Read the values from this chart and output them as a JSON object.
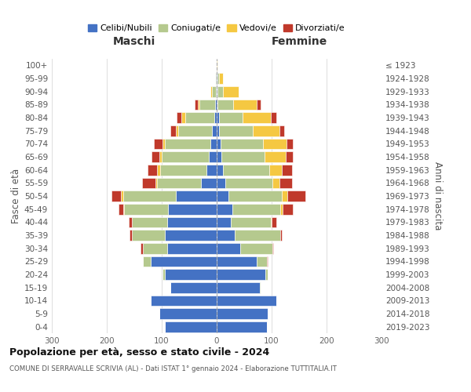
{
  "age_groups": [
    "0-4",
    "5-9",
    "10-14",
    "15-19",
    "20-24",
    "25-29",
    "30-34",
    "35-39",
    "40-44",
    "45-49",
    "50-54",
    "55-59",
    "60-64",
    "65-69",
    "70-74",
    "75-79",
    "80-84",
    "85-89",
    "90-94",
    "95-99",
    "100+"
  ],
  "birth_years": [
    "2019-2023",
    "2014-2018",
    "2009-2013",
    "2004-2008",
    "1999-2003",
    "1994-1998",
    "1989-1993",
    "1984-1988",
    "1979-1983",
    "1974-1978",
    "1969-1973",
    "1964-1968",
    "1959-1963",
    "1954-1958",
    "1949-1953",
    "1944-1948",
    "1939-1943",
    "1934-1938",
    "1929-1933",
    "1924-1928",
    "≤ 1923"
  ],
  "maschi": {
    "celibi": [
      95,
      105,
      120,
      85,
      95,
      120,
      90,
      95,
      90,
      88,
      75,
      28,
      18,
      15,
      12,
      8,
      5,
      3,
      2,
      1,
      0
    ],
    "coniugati": [
      0,
      0,
      0,
      0,
      3,
      15,
      45,
      60,
      65,
      80,
      95,
      80,
      85,
      85,
      82,
      62,
      52,
      28,
      7,
      2,
      0
    ],
    "vedovi": [
      0,
      0,
      0,
      0,
      0,
      0,
      0,
      0,
      0,
      2,
      4,
      4,
      5,
      5,
      5,
      5,
      8,
      4,
      3,
      0,
      0
    ],
    "divorziati": [
      0,
      0,
      0,
      0,
      0,
      0,
      4,
      4,
      5,
      8,
      18,
      24,
      18,
      14,
      15,
      10,
      8,
      5,
      0,
      0,
      0
    ]
  },
  "femmine": {
    "nubili": [
      92,
      93,
      108,
      78,
      88,
      73,
      43,
      33,
      26,
      28,
      22,
      16,
      11,
      9,
      7,
      4,
      4,
      2,
      2,
      1,
      0
    ],
    "coniugate": [
      0,
      0,
      0,
      2,
      5,
      18,
      58,
      82,
      72,
      88,
      97,
      85,
      85,
      78,
      77,
      62,
      43,
      28,
      10,
      3,
      0
    ],
    "vedove": [
      0,
      0,
      0,
      0,
      0,
      0,
      0,
      0,
      2,
      4,
      9,
      13,
      23,
      38,
      43,
      48,
      52,
      43,
      28,
      8,
      1
    ],
    "divorziate": [
      0,
      0,
      0,
      0,
      0,
      2,
      2,
      4,
      9,
      18,
      33,
      23,
      18,
      14,
      11,
      9,
      9,
      7,
      0,
      0,
      0
    ]
  },
  "colors": {
    "celibi": "#4472c4",
    "coniugati": "#b5c98e",
    "vedovi": "#f5c842",
    "divorziati": "#c0392b"
  },
  "legend_labels": [
    "Celibi/Nubili",
    "Coniugati/e",
    "Vedovi/e",
    "Divorziati/e"
  ],
  "title": "Popolazione per età, sesso e stato civile - 2024",
  "subtitle": "COMUNE DI SERRAVALLE SCRIVIA (AL) - Dati ISTAT 1° gennaio 2024 - Elaborazione TUTTITALIA.IT",
  "label_maschi": "Maschi",
  "label_femmine": "Femmine",
  "label_fasce": "Fasce di età",
  "label_anni": "Anni di nascita",
  "xlim": 300,
  "bg_color": "#ffffff",
  "grid_color": "#d0d0d0"
}
